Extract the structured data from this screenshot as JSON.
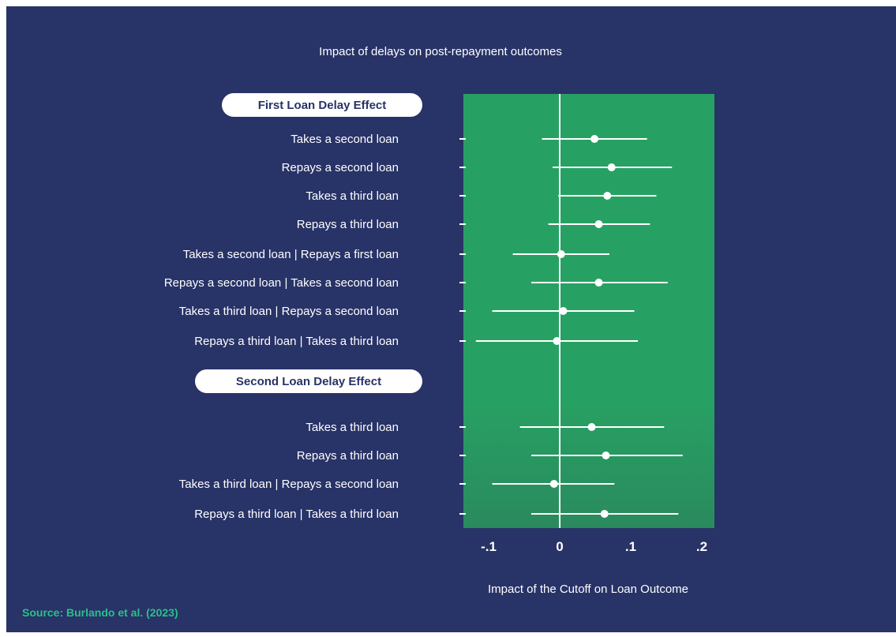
{
  "colors": {
    "background": "#283367",
    "plot_background": "#27a163",
    "marks": "#ffffff",
    "source_text": "#2bbf8a",
    "pill_text": "#283367"
  },
  "source": "Source: Burlando et al. (2023)",
  "chart_data": {
    "type": "scatter",
    "title": "Impact of delays on post-repayment outcomes",
    "xlabel": "Impact of the Cutoff on Loan Outcome",
    "xlim": [
      -0.135,
      0.22
    ],
    "x_ticks": [
      -0.1,
      0,
      0.1,
      0.2
    ],
    "x_tick_labels": [
      "-.1",
      "0",
      ".1",
      ".2"
    ],
    "reference_line": 0,
    "grid": false,
    "groups": [
      {
        "name": "First Loan Delay Effect",
        "rows": [
          {
            "label": "Takes a second loan",
            "estimate": 0.049,
            "ci": [
              -0.025,
              0.123
            ]
          },
          {
            "label": "Repays a second loan",
            "estimate": 0.073,
            "ci": [
              -0.01,
              0.158
            ]
          },
          {
            "label": "Takes a third loan",
            "estimate": 0.067,
            "ci": [
              -0.002,
              0.136
            ]
          },
          {
            "label": "Repays a third loan",
            "estimate": 0.055,
            "ci": [
              -0.016,
              0.127
            ]
          },
          {
            "label": "Takes a second loan | Repays a first loan",
            "estimate": 0.002,
            "ci": [
              -0.066,
              0.07
            ]
          },
          {
            "label": "Repays a second loan | Takes a second loan",
            "estimate": 0.055,
            "ci": [
              -0.04,
              0.152
            ]
          },
          {
            "label": "Takes a third loan | Repays a second loan",
            "estimate": 0.005,
            "ci": [
              -0.095,
              0.105
            ]
          },
          {
            "label": "Repays a third loan | Takes a third loan",
            "estimate": -0.004,
            "ci": [
              -0.118,
              0.11
            ]
          }
        ]
      },
      {
        "name": "Second Loan Delay Effect",
        "rows": [
          {
            "label": "Takes a third loan",
            "estimate": 0.045,
            "ci": [
              -0.056,
              0.147
            ]
          },
          {
            "label": "Repays a third loan",
            "estimate": 0.065,
            "ci": [
              -0.04,
              0.173
            ]
          },
          {
            "label": "Takes a third loan | Repays a second loan",
            "estimate": -0.008,
            "ci": [
              -0.095,
              0.077
            ]
          },
          {
            "label": "Repays a third loan | Takes a third loan",
            "estimate": 0.063,
            "ci": [
              -0.04,
              0.167
            ]
          }
        ]
      }
    ]
  }
}
